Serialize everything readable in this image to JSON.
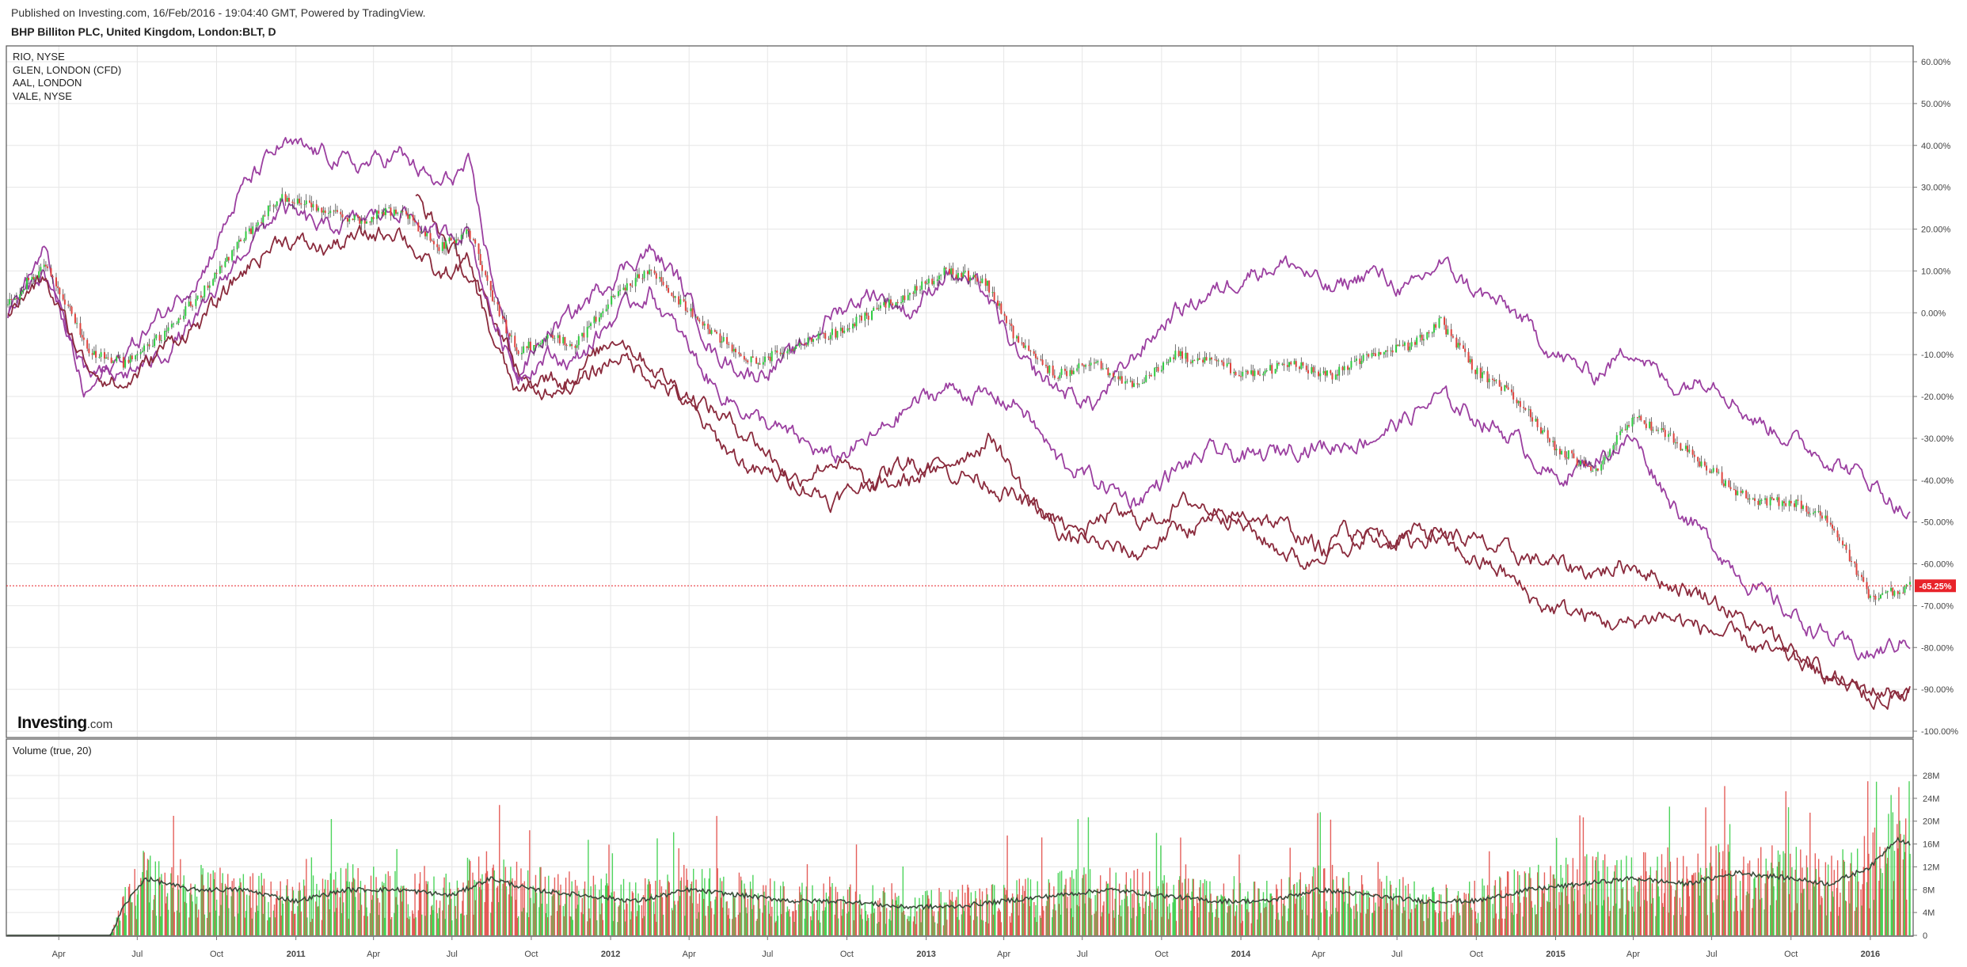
{
  "header": {
    "published": "Published on Investing.com, 16/Feb/2016 - 19:04:40 GMT, Powered by TradingView.",
    "symbol_title": "BHP Billiton PLC, United Kingdom, London:BLT, D"
  },
  "legend": [
    "RIO, NYSE",
    "GLEN, LONDON (CFD)",
    "AAL, LONDON",
    "VALE, NYSE"
  ],
  "logo": {
    "word": "Investing",
    "domain": ".com"
  },
  "current_label": "-65.25%",
  "volume_title": "Volume (true, 20)",
  "colors": {
    "up": "#2ecc40",
    "down": "#e0433e",
    "purple_line": "#9b3fa0",
    "maroon_line": "#8a2a3c",
    "ma_line": "#3b4a3b",
    "price_line": "#e8232a",
    "grid": "#e6e6e6"
  },
  "chart_data": [
    {
      "type": "line",
      "title": "BHP Billiton PLC, United Kingdom, London:BLT, D",
      "y_unit": "%",
      "ylim": [
        -100,
        60
      ],
      "y_ticks": [
        "60.00%",
        "50.00%",
        "40.00%",
        "30.00%",
        "20.00%",
        "10.00%",
        "0.00%",
        "-10.00%",
        "-20.00%",
        "-30.00%",
        "-40.00%",
        "-50.00%",
        "-60.00%",
        "-70.00%",
        "-80.00%",
        "-90.00%",
        "-100.00%"
      ],
      "y_tick_values": [
        60,
        50,
        40,
        30,
        20,
        10,
        0,
        -10,
        -20,
        -30,
        -40,
        -50,
        -60,
        -70,
        -80,
        -90,
        -100
      ],
      "x_ticks": [
        "Apr",
        "Jul",
        "Oct",
        "2011",
        "Apr",
        "Jul",
        "Oct",
        "2012",
        "Apr",
        "Jul",
        "Oct",
        "2013",
        "Apr",
        "Jul",
        "Oct",
        "2014",
        "Apr",
        "Jul",
        "Oct",
        "2015",
        "Apr",
        "Jul",
        "Oct",
        "2016"
      ],
      "x_tick_dates": [
        "2010-04-01",
        "2010-07-01",
        "2010-10-01",
        "2011-01-01",
        "2011-04-01",
        "2011-07-01",
        "2011-10-01",
        "2012-01-01",
        "2012-04-01",
        "2012-07-01",
        "2012-10-01",
        "2013-01-01",
        "2013-04-01",
        "2013-07-01",
        "2013-10-01",
        "2014-01-01",
        "2014-04-01",
        "2014-07-01",
        "2014-10-01",
        "2015-01-01",
        "2015-04-01",
        "2015-07-01",
        "2015-10-01",
        "2016-01-01"
      ],
      "grid": true,
      "current_value": -65.25,
      "series": [
        {
          "name": "BHP Billiton PLC, United Kingdom, London:BLT, D",
          "style": "candles",
          "x": [
            "2010-02-01",
            "2010-03-15",
            "2010-05-10",
            "2010-06-15",
            "2010-08-01",
            "2010-09-15",
            "2010-11-01",
            "2010-12-15",
            "2011-02-01",
            "2011-03-15",
            "2011-05-01",
            "2011-06-15",
            "2011-07-20",
            "2011-08-15",
            "2011-09-15",
            "2011-10-20",
            "2011-11-20",
            "2012-01-10",
            "2012-02-15",
            "2012-03-20",
            "2012-05-01",
            "2012-06-15",
            "2012-08-01",
            "2012-09-15",
            "2012-11-01",
            "2012-12-15",
            "2013-01-25",
            "2013-03-10",
            "2013-04-20",
            "2013-06-01",
            "2013-07-15",
            "2013-09-01",
            "2013-10-15",
            "2013-12-01",
            "2014-01-15",
            "2014-03-01",
            "2014-04-15",
            "2014-06-01",
            "2014-07-15",
            "2014-08-20",
            "2014-10-01",
            "2014-11-15",
            "2015-01-01",
            "2015-02-15",
            "2015-04-01",
            "2015-05-15",
            "2015-07-01",
            "2015-08-15",
            "2015-10-01",
            "2015-11-15",
            "2016-01-01",
            "2016-02-16"
          ],
          "y": [
            2,
            12,
            -10,
            -12,
            -5,
            5,
            18,
            28,
            25,
            22,
            25,
            15,
            20,
            5,
            -10,
            -5,
            -8,
            5,
            10,
            3,
            -5,
            -12,
            -8,
            -5,
            0,
            5,
            10,
            8,
            -8,
            -15,
            -12,
            -18,
            -10,
            -12,
            -15,
            -12,
            -15,
            -10,
            -8,
            -2,
            -14,
            -20,
            -32,
            -38,
            -25,
            -30,
            -38,
            -45,
            -45,
            -50,
            -68,
            -65.25
          ]
        },
        {
          "name": "RIO, NYSE",
          "style": "line",
          "color": "#9b3fa0",
          "x": [
            "2010-02-01",
            "2010-03-15",
            "2010-05-01",
            "2010-06-15",
            "2010-08-01",
            "2010-09-15",
            "2010-11-01",
            "2010-12-15",
            "2011-02-01",
            "2011-03-15",
            "2011-05-01",
            "2011-06-15",
            "2011-07-20",
            "2011-08-15",
            "2011-09-15",
            "2011-10-20",
            "2011-11-20",
            "2012-01-10",
            "2012-02-15",
            "2012-03-20",
            "2012-05-01",
            "2012-06-15",
            "2012-08-01",
            "2012-09-15",
            "2012-11-01",
            "2012-12-15",
            "2013-01-25",
            "2013-03-10",
            "2013-04-20",
            "2013-06-01",
            "2013-07-15",
            "2013-09-01",
            "2013-10-15",
            "2013-12-01",
            "2014-01-15",
            "2014-03-01",
            "2014-04-15",
            "2014-06-01",
            "2014-07-15",
            "2014-08-20",
            "2014-10-01",
            "2014-11-15",
            "2015-01-01",
            "2015-02-15",
            "2015-04-01",
            "2015-05-15",
            "2015-07-01",
            "2015-08-15",
            "2015-10-01",
            "2015-11-15",
            "2016-01-01",
            "2016-02-16"
          ],
          "y": [
            0,
            15,
            -20,
            -10,
            0,
            10,
            30,
            40,
            38,
            35,
            38,
            30,
            35,
            10,
            -15,
            -5,
            0,
            10,
            15,
            8,
            -10,
            -15,
            -10,
            0,
            5,
            0,
            10,
            5,
            -12,
            -18,
            -22,
            -10,
            0,
            5,
            10,
            12,
            5,
            10,
            5,
            12,
            5,
            0,
            -10,
            -15,
            -8,
            -18,
            -15,
            -25,
            -30,
            -35,
            -40,
            -49
          ]
        },
        {
          "name": "GLEN, LONDON (CFD)",
          "style": "line",
          "color": "#8a2a3c",
          "x": [
            "2011-05-20",
            "2011-07-01",
            "2011-08-15",
            "2011-10-01",
            "2011-11-20",
            "2012-01-10",
            "2012-03-01",
            "2012-04-20",
            "2012-06-15",
            "2012-08-01",
            "2012-09-15",
            "2012-11-01",
            "2012-12-15",
            "2013-02-01",
            "2013-03-20",
            "2013-05-01",
            "2013-06-20",
            "2013-08-01",
            "2013-09-15",
            "2013-11-01",
            "2013-12-15",
            "2014-02-01",
            "2014-03-20",
            "2014-05-01",
            "2014-06-15",
            "2014-08-01",
            "2014-09-15",
            "2014-11-01",
            "2014-12-15",
            "2015-02-01",
            "2015-03-20",
            "2015-05-01",
            "2015-06-15",
            "2015-08-01",
            "2015-09-15",
            "2015-11-01",
            "2015-12-15",
            "2016-02-16"
          ],
          "y": [
            28,
            15,
            0,
            -20,
            -15,
            -5,
            -15,
            -22,
            -30,
            -40,
            -35,
            -42,
            -40,
            -35,
            -30,
            -45,
            -55,
            -48,
            -50,
            -45,
            -48,
            -55,
            -60,
            -52,
            -55,
            -52,
            -58,
            -62,
            -70,
            -72,
            -75,
            -72,
            -75,
            -78,
            -82,
            -85,
            -90,
            -91
          ]
        },
        {
          "name": "AAL, LONDON",
          "style": "line",
          "color": "#9b3fa0",
          "x": [
            "2010-02-01",
            "2010-03-15",
            "2010-05-01",
            "2010-06-15",
            "2010-08-01",
            "2010-09-15",
            "2010-11-01",
            "2010-12-15",
            "2011-02-01",
            "2011-03-15",
            "2011-05-01",
            "2011-06-15",
            "2011-07-20",
            "2011-08-15",
            "2011-09-15",
            "2011-10-20",
            "2011-11-20",
            "2012-01-10",
            "2012-02-15",
            "2012-03-20",
            "2012-05-01",
            "2012-06-15",
            "2012-08-01",
            "2012-09-15",
            "2012-11-01",
            "2012-12-15",
            "2013-01-25",
            "2013-03-10",
            "2013-04-20",
            "2013-06-01",
            "2013-07-15",
            "2013-09-01",
            "2013-10-15",
            "2013-12-01",
            "2014-01-15",
            "2014-03-01",
            "2014-04-15",
            "2014-06-01",
            "2014-07-15",
            "2014-08-20",
            "2014-10-01",
            "2014-11-15",
            "2015-01-01",
            "2015-02-15",
            "2015-04-01",
            "2015-05-15",
            "2015-07-01",
            "2015-08-15",
            "2015-10-01",
            "2015-11-15",
            "2016-01-01",
            "2016-02-16"
          ],
          "y": [
            0,
            10,
            -15,
            -15,
            -10,
            0,
            15,
            25,
            20,
            22,
            25,
            18,
            20,
            0,
            -15,
            -10,
            -12,
            0,
            5,
            -5,
            -18,
            -25,
            -30,
            -35,
            -30,
            -22,
            -18,
            -20,
            -22,
            -35,
            -40,
            -45,
            -38,
            -33,
            -35,
            -32,
            -32,
            -30,
            -25,
            -20,
            -25,
            -30,
            -40,
            -35,
            -30,
            -45,
            -55,
            -65,
            -72,
            -78,
            -82,
            -78
          ]
        },
        {
          "name": "VALE, NYSE",
          "style": "line",
          "color": "#8a2a3c",
          "x": [
            "2010-02-01",
            "2010-03-15",
            "2010-05-01",
            "2010-06-15",
            "2010-08-01",
            "2010-09-15",
            "2010-11-01",
            "2010-12-15",
            "2011-02-01",
            "2011-03-15",
            "2011-05-01",
            "2011-06-15",
            "2011-07-20",
            "2011-08-15",
            "2011-09-15",
            "2011-10-20",
            "2011-11-20",
            "2012-01-10",
            "2012-02-15",
            "2012-03-20",
            "2012-05-01",
            "2012-06-15",
            "2012-08-01",
            "2012-09-15",
            "2012-11-01",
            "2012-12-15",
            "2013-01-25",
            "2013-03-10",
            "2013-04-20",
            "2013-06-01",
            "2013-07-15",
            "2013-09-01",
            "2013-10-15",
            "2013-12-01",
            "2014-01-15",
            "2014-03-01",
            "2014-04-15",
            "2014-06-01",
            "2014-07-15",
            "2014-08-20",
            "2014-10-01",
            "2014-11-15",
            "2015-01-01",
            "2015-02-15",
            "2015-04-01",
            "2015-05-15",
            "2015-07-01",
            "2015-08-15",
            "2015-10-01",
            "2015-11-15",
            "2016-01-01",
            "2016-02-16"
          ],
          "y": [
            0,
            8,
            -12,
            -18,
            -8,
            -2,
            10,
            18,
            15,
            18,
            20,
            8,
            12,
            -5,
            -20,
            -15,
            -18,
            -10,
            -15,
            -20,
            -30,
            -38,
            -40,
            -45,
            -40,
            -35,
            -38,
            -40,
            -45,
            -50,
            -55,
            -58,
            -52,
            -50,
            -48,
            -52,
            -58,
            -52,
            -55,
            -52,
            -55,
            -58,
            -60,
            -62,
            -60,
            -65,
            -68,
            -75,
            -80,
            -88,
            -92,
            -91
          ]
        }
      ]
    },
    {
      "type": "bar",
      "title": "Volume (true, 20)",
      "ylim": [
        0,
        30
      ],
      "y_unit": "M",
      "y_ticks": [
        "28M",
        "24M",
        "20M",
        "16M",
        "12M",
        "8M",
        "4M",
        "0"
      ],
      "y_tick_values": [
        28,
        24,
        20,
        16,
        12,
        8,
        4,
        0
      ],
      "volume_start": "2010-06-01",
      "series": [
        {
          "name": "Volume (true, 20)",
          "style": "line",
          "x": [
            "2010-02-01",
            "2010-05-31",
            "2010-06-15",
            "2010-07-10",
            "2010-09-01",
            "2010-11-01",
            "2011-01-01",
            "2011-03-01",
            "2011-05-01",
            "2011-07-01",
            "2011-08-15",
            "2011-10-01",
            "2011-12-01",
            "2012-02-01",
            "2012-04-01",
            "2012-06-01",
            "2012-08-01",
            "2012-10-01",
            "2012-12-01",
            "2013-02-01",
            "2013-04-01",
            "2013-06-01",
            "2013-08-01",
            "2013-10-01",
            "2013-12-01",
            "2014-02-01",
            "2014-04-01",
            "2014-06-01",
            "2014-08-01",
            "2014-10-01",
            "2014-12-01",
            "2015-02-01",
            "2015-04-01",
            "2015-06-01",
            "2015-08-01",
            "2015-10-01",
            "2015-11-15",
            "2016-01-01",
            "2016-02-01",
            "2016-02-16"
          ],
          "y": [
            0,
            0,
            5,
            10,
            8,
            8,
            6,
            8,
            8,
            7,
            10,
            8,
            7,
            6,
            8,
            7,
            6,
            6,
            5,
            5,
            6,
            7,
            8,
            7,
            6,
            6,
            8,
            7,
            6,
            6,
            8,
            9,
            10,
            9,
            11,
            10,
            9,
            12,
            17,
            16
          ]
        }
      ]
    }
  ]
}
